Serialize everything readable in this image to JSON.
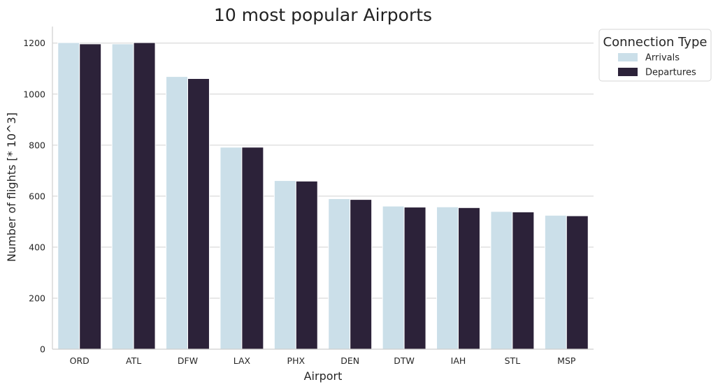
{
  "chart_data": {
    "type": "bar",
    "title": "10 most popular Airports",
    "xlabel": "Airport",
    "ylabel": "Number of flights [* 10^3]",
    "categories": [
      "ORD",
      "ATL",
      "DFW",
      "LAX",
      "PHX",
      "DEN",
      "DTW",
      "IAH",
      "STL",
      "MSP"
    ],
    "series": [
      {
        "name": "Arrivals",
        "color": "#cbdfe9",
        "values": [
          1202,
          1197,
          1069,
          792,
          661,
          590,
          561,
          558,
          540,
          525
        ]
      },
      {
        "name": "Departures",
        "color": "#2c2239",
        "values": [
          1197,
          1202,
          1061,
          792,
          659,
          587,
          557,
          555,
          538,
          523
        ]
      }
    ],
    "ylim": [
      0,
      1265
    ],
    "yticks": [
      0,
      200,
      400,
      600,
      800,
      1000,
      1200
    ],
    "ytick_labels": [
      "0",
      "200",
      "400",
      "600",
      "800",
      "1000",
      "1200"
    ],
    "grid": "horizontal",
    "legend": {
      "title": "Connection Type",
      "placement": "outside top-right"
    }
  }
}
